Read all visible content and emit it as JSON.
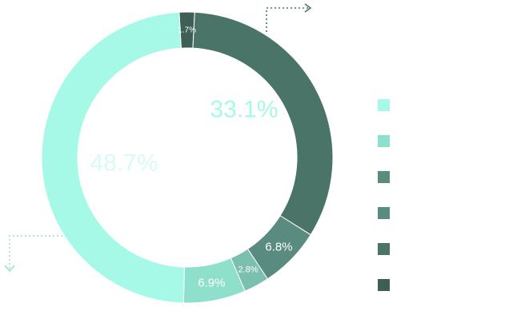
{
  "chart_data": {
    "type": "pie",
    "donut": true,
    "slices": [
      {
        "value": 1.7,
        "label": "1.7%",
        "color": "#3f5f56"
      },
      {
        "value": 33.1,
        "label": "33.1%",
        "color": "#4a7467"
      },
      {
        "value": 6.8,
        "label": "6.8%",
        "color": "#5a8b80"
      },
      {
        "value": 2.8,
        "label": "2.8%",
        "color": "#7bbfb0"
      },
      {
        "value": 6.9,
        "label": "6.9%",
        "color": "#8ee0cd"
      },
      {
        "value": 48.7,
        "label": "48.7%",
        "color": "#a6f9e7"
      }
    ],
    "legend": {
      "placement": "right",
      "items": [
        {
          "label": "",
          "color": "#a6f9e7"
        },
        {
          "label": "",
          "color": "#8ee0cd"
        },
        {
          "label": "",
          "color": "#5a8b80"
        },
        {
          "label": "",
          "color": "#5a8b80"
        },
        {
          "label": "",
          "color": "#4a7467"
        },
        {
          "label": "",
          "color": "#3f5f56"
        }
      ]
    }
  }
}
